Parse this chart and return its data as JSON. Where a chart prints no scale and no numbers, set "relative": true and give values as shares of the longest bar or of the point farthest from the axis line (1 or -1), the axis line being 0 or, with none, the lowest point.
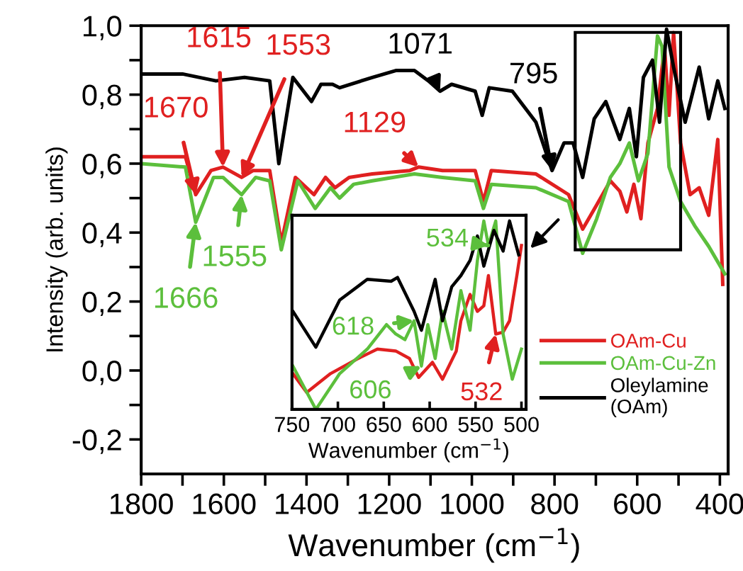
{
  "chart_data": [
    {
      "type": "line",
      "xlabel": "Wavenumber (cm$^{−1}$)",
      "ylabel": "Intensity (arb. units)",
      "xlim": [
        1800,
        380
      ],
      "ylim": [
        -0.3,
        1.0
      ],
      "xticks": [
        1800,
        {
          "value": 1700,
          "label": null
        },
        1600,
        {
          "value": 1500,
          "label": null
        },
        1400,
        {
          "value": 1300,
          "label": null
        },
        1200,
        {
          "value": 1100,
          "label": null
        },
        1000,
        {
          "value": 900,
          "label": null
        },
        800,
        {
          "value": 700,
          "label": null
        },
        600,
        {
          "value": 500,
          "label": null
        },
        400
      ],
      "yticks": [
        {
          "value": -0.2,
          "label": "-0,2"
        },
        {
          "value": -0.1,
          "label": null
        },
        {
          "value": 0.0,
          "label": "0,0"
        },
        {
          "value": 0.1,
          "label": null
        },
        {
          "value": 0.2,
          "label": "0,2"
        },
        {
          "value": 0.3,
          "label": null
        },
        {
          "value": 0.4,
          "label": "0,4"
        },
        {
          "value": 0.5,
          "label": null
        },
        {
          "value": 0.6,
          "label": "0,6"
        },
        {
          "value": 0.7,
          "label": null
        },
        {
          "value": 0.8,
          "label": "0,8"
        },
        {
          "value": 0.9,
          "label": null
        },
        {
          "value": 1.0,
          "label": "1,0"
        }
      ],
      "legend": "bottom right",
      "grid": false,
      "line_style": "solid",
      "marker": "none",
      "series": [
        {
          "name": "OAm-Cu",
          "color": "#e02020",
          "x": [
            1800,
            1693,
            1668,
            1631,
            1602,
            1557,
            1529,
            1489,
            1461,
            1427,
            1382,
            1354,
            1331,
            1297,
            1241,
            1150,
            1129,
            1071,
            992,
            972,
            953,
            845,
            766,
            732,
            698,
            665,
            642,
            625,
            608,
            591,
            574,
            551,
            534,
            523,
            512,
            495,
            472,
            450,
            427,
            405,
            393
          ],
          "values": [
            0.62,
            0.62,
            0.51,
            0.58,
            0.59,
            0.56,
            0.58,
            0.58,
            0.37,
            0.56,
            0.51,
            0.56,
            0.53,
            0.56,
            0.57,
            0.58,
            0.59,
            0.58,
            0.58,
            0.49,
            0.58,
            0.57,
            0.51,
            0.41,
            0.48,
            0.55,
            0.52,
            0.46,
            0.54,
            0.44,
            0.66,
            0.76,
            0.94,
            0.74,
            0.98,
            0.66,
            0.51,
            0.53,
            0.45,
            0.67,
            0.25
          ]
        },
        {
          "name": "OAm-Cu-Zn",
          "color": "#5cbf3c",
          "x": [
            1800,
            1693,
            1668,
            1625,
            1602,
            1557,
            1523,
            1489,
            1461,
            1421,
            1379,
            1342,
            1320,
            1286,
            1241,
            1139,
            1071,
            992,
            972,
            953,
            845,
            766,
            732,
            698,
            665,
            642,
            619,
            597,
            574,
            551,
            540,
            523,
            495,
            461,
            427,
            388
          ],
          "values": [
            0.6,
            0.59,
            0.43,
            0.56,
            0.56,
            0.51,
            0.56,
            0.55,
            0.35,
            0.55,
            0.47,
            0.53,
            0.5,
            0.54,
            0.55,
            0.57,
            0.56,
            0.55,
            0.47,
            0.54,
            0.53,
            0.49,
            0.34,
            0.44,
            0.56,
            0.6,
            0.66,
            0.55,
            0.63,
            0.97,
            0.94,
            0.59,
            0.49,
            0.42,
            0.36,
            0.28
          ]
        },
        {
          "name": "Oleylamine\n(OAm)",
          "color": "#000000",
          "x": [
            1800,
            1700,
            1619,
            1550,
            1489,
            1467,
            1433,
            1388,
            1365,
            1337,
            1320,
            1241,
            1184,
            1139,
            1105,
            1077,
            1049,
            992,
            975,
            958,
            902,
            845,
            806,
            777,
            755,
            732,
            704,
            676,
            642,
            619,
            602,
            585,
            563,
            546,
            529,
            512,
            484,
            450,
            427,
            405,
            388
          ],
          "values": [
            0.86,
            0.86,
            0.84,
            0.85,
            0.84,
            0.6,
            0.85,
            0.78,
            0.83,
            0.83,
            0.82,
            0.85,
            0.87,
            0.87,
            0.84,
            0.81,
            0.83,
            0.81,
            0.74,
            0.82,
            0.81,
            0.72,
            0.58,
            0.66,
            0.66,
            0.56,
            0.73,
            0.78,
            0.67,
            0.76,
            0.62,
            0.85,
            0.9,
            0.72,
            0.99,
            0.88,
            0.72,
            0.88,
            0.73,
            0.84,
            0.76
          ]
        }
      ],
      "annotations": [
        {
          "text": "1670",
          "x": 1668,
          "y": 0.51
        },
        {
          "text": "1615",
          "x": 1602,
          "y": 0.59
        },
        {
          "text": "1553",
          "x": 1557,
          "y": 0.56
        },
        {
          "text": "1071",
          "x": 1077,
          "y": 0.81
        },
        {
          "text": "795",
          "x": 806,
          "y": 0.58
        },
        {
          "text": "1129",
          "x": 1129,
          "y": 0.59
        },
        {
          "text": "1666",
          "x": 1668,
          "y": 0.43
        },
        {
          "text": "1555",
          "x": 1557,
          "y": 0.51
        }
      ]
    },
    {
      "type": "line",
      "xlabel": "Wavenumber (cm$^{−1}$)",
      "relative": true,
      "xlim": [
        750,
        495
      ],
      "xticks": [
        750,
        700,
        650,
        600,
        550,
        500
      ],
      "tick_labels": "x",
      "grid": false,
      "series": [
        {
          "color": "#e02020",
          "x": [
            749,
            734,
            708,
            678,
            657,
            637,
            622,
            612,
            597,
            586,
            571,
            566,
            556,
            548,
            541,
            536,
            528,
            520,
            513,
            505,
            500
          ],
          "values": [
            0.19,
            0.09,
            0.19,
            0.27,
            0.32,
            0.31,
            0.27,
            0.17,
            0.25,
            0.16,
            0.31,
            0.47,
            0.61,
            0.52,
            0.55,
            0.71,
            0.4,
            0.41,
            0.47,
            0.71,
            0.87
          ]
        },
        {
          "color": "#5cbf3c",
          "x": [
            749,
            724,
            698,
            668,
            647,
            637,
            627,
            617,
            609,
            602,
            594,
            586,
            576,
            566,
            556,
            548,
            541,
            536,
            528,
            520,
            510,
            500
          ],
          "values": [
            0.23,
            0.0,
            0.19,
            0.32,
            0.45,
            0.4,
            0.37,
            0.47,
            0.23,
            0.45,
            0.27,
            0.52,
            0.32,
            0.63,
            0.42,
            0.79,
            1.0,
            0.87,
            1.0,
            0.4,
            0.16,
            0.32
          ]
        },
        {
          "color": "#000000",
          "x": [
            749,
            724,
            698,
            668,
            642,
            635,
            617,
            609,
            594,
            586,
            576,
            566,
            556,
            548,
            541,
            530,
            520,
            513,
            503
          ],
          "values": [
            0.52,
            0.33,
            0.58,
            0.69,
            0.68,
            0.7,
            0.52,
            0.42,
            0.69,
            0.47,
            0.65,
            0.71,
            0.79,
            0.92,
            0.76,
            0.95,
            0.84,
            1.0,
            0.82
          ]
        }
      ],
      "annotations": [
        {
          "text": "618",
          "x": 617,
          "y": 0.47
        },
        {
          "text": "606",
          "x": 609,
          "y": 0.23
        },
        {
          "text": "534",
          "x": 536,
          "y": 0.87
        },
        {
          "text": "532",
          "x": 528,
          "y": 0.4
        }
      ]
    }
  ]
}
